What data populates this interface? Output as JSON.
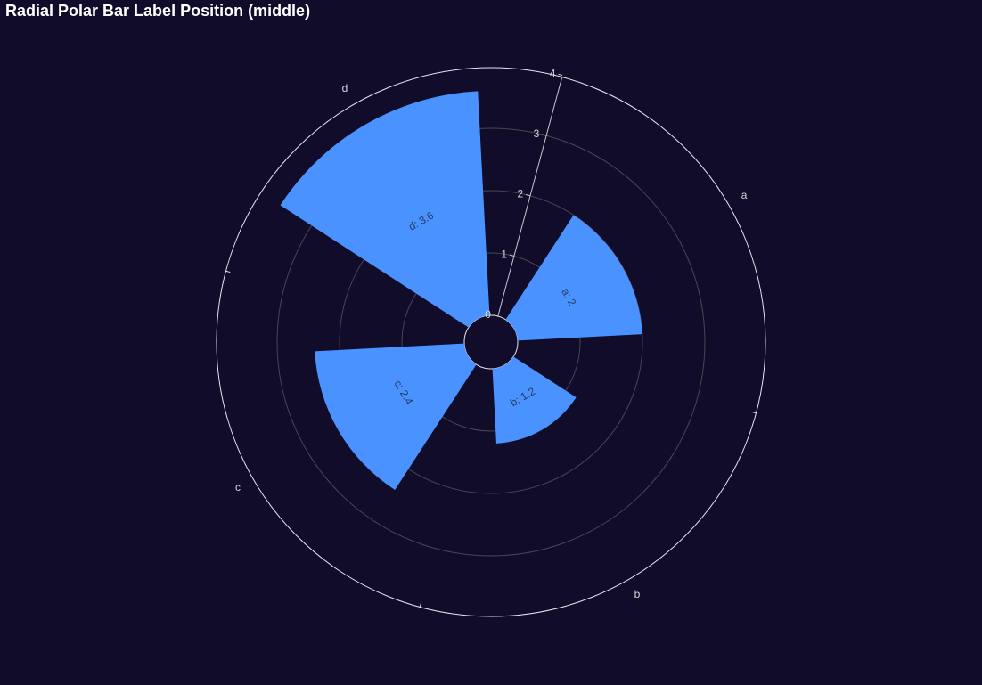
{
  "title": "Radial Polar Bar Label Position (middle)",
  "colors": {
    "background": "#100c2a",
    "bar": "#4992ff",
    "outer_axis": "#e6e6ee",
    "split_line": "#484753",
    "radius_axis": "#c8c8d0",
    "label": "#2a3b5c"
  },
  "chart_data": {
    "type": "bar",
    "coordinate_system": "polar",
    "orientation": "radial",
    "categories": [
      "a",
      "b",
      "c",
      "d"
    ],
    "series": [
      {
        "values": [
          2,
          1.2,
          2.4,
          3.6
        ]
      }
    ],
    "labels": [
      "a: 2",
      "b: 1.2",
      "c: 2.4",
      "d: 3.6"
    ],
    "label_position": "middle",
    "radius_axis": {
      "min": 0,
      "max": 4,
      "ticks": [
        "0",
        "1",
        "2",
        "3",
        "4"
      ]
    },
    "start_angle_deg": 75,
    "grid": true
  }
}
